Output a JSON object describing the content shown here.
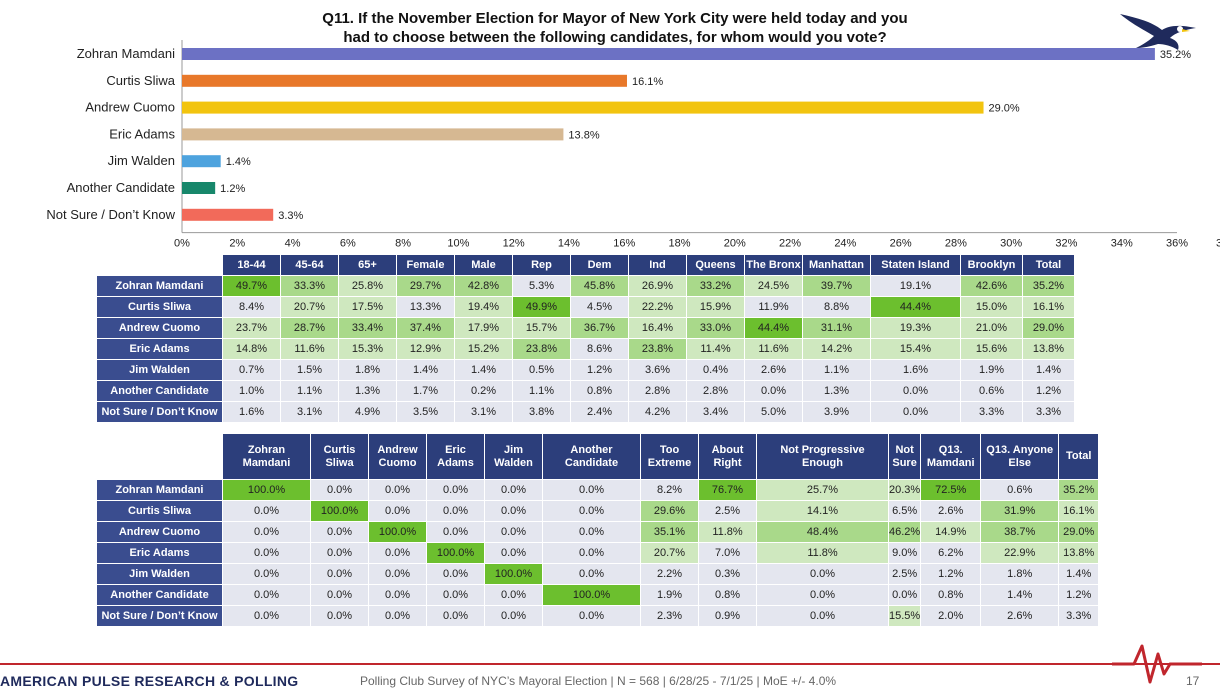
{
  "title_line1": "Q11. If the November Election for Mayor of New York City were held today and you",
  "title_line2": "had to choose between the following candidates, for whom would you vote?",
  "colors": {
    "header_bg": "#2c3e7b",
    "row_label_bg": "#3a4d8f",
    "accent_red": "#c0262d",
    "highlight_strong": "#6cbf2e",
    "highlight_light": "#a9d98a",
    "highlight_pale": "#cfe8bf",
    "cell_plain": "#e4e6ef"
  },
  "chart_data": {
    "type": "bar",
    "orientation": "horizontal",
    "categories": [
      "Zohran Mamdani",
      "Curtis Sliwa",
      "Andrew Cuomo",
      "Eric Adams",
      "Jim Walden",
      "Another Candidate",
      "Not Sure / Don’t Know"
    ],
    "values": [
      35.2,
      16.1,
      29.0,
      13.8,
      1.4,
      1.2,
      3.3
    ],
    "value_labels": [
      "35.2%",
      "16.1%",
      "29.0%",
      "13.8%",
      "1.4%",
      "1.2%",
      "3.3%"
    ],
    "bar_colors": [
      "#6c71c4",
      "#e8782a",
      "#f2c40f",
      "#d6b892",
      "#4ea3de",
      "#17876b",
      "#f26a5a"
    ],
    "xlim": [
      0,
      36
    ],
    "x_ticks": [
      "0%",
      "2%",
      "4%",
      "6%",
      "8%",
      "10%",
      "12%",
      "14%",
      "16%",
      "18%",
      "20%",
      "22%",
      "24%",
      "26%",
      "28%",
      "30%",
      "32%",
      "34%",
      "36%"
    ],
    "x_tick_overflow": "3",
    "grid": false,
    "legend": "none"
  },
  "table1": {
    "columns": [
      "18-44",
      "45-64",
      "65+",
      "Female",
      "Male",
      "Rep",
      "Dem",
      "Ind",
      "Queens",
      "The Bronx",
      "Manhattan",
      "Staten Island",
      "Brooklyn",
      "Total"
    ],
    "rows": [
      {
        "label": "Zohran Mamdani",
        "cells": [
          "49.7%",
          "33.3%",
          "25.8%",
          "29.7%",
          "42.8%",
          "5.3%",
          "45.8%",
          "26.9%",
          "33.2%",
          "24.5%",
          "39.7%",
          "19.1%",
          "42.6%",
          "35.2%"
        ],
        "shade": [
          "s",
          "l",
          "p",
          "l",
          "l",
          "n",
          "l",
          "p",
          "l",
          "p",
          "l",
          "n",
          "l",
          "l"
        ]
      },
      {
        "label": "Curtis Sliwa",
        "cells": [
          "8.4%",
          "20.7%",
          "17.5%",
          "13.3%",
          "19.4%",
          "49.9%",
          "4.5%",
          "22.2%",
          "15.9%",
          "11.9%",
          "8.8%",
          "44.4%",
          "15.0%",
          "16.1%"
        ],
        "shade": [
          "n",
          "p",
          "p",
          "n",
          "p",
          "s",
          "n",
          "p",
          "p",
          "n",
          "n",
          "s",
          "p",
          "p"
        ]
      },
      {
        "label": "Andrew Cuomo",
        "cells": [
          "23.7%",
          "28.7%",
          "33.4%",
          "37.4%",
          "17.9%",
          "15.7%",
          "36.7%",
          "16.4%",
          "33.0%",
          "44.4%",
          "31.1%",
          "19.3%",
          "21.0%",
          "29.0%"
        ],
        "shade": [
          "p",
          "l",
          "l",
          "l",
          "p",
          "p",
          "l",
          "p",
          "l",
          "s",
          "l",
          "p",
          "p",
          "l"
        ]
      },
      {
        "label": "Eric Adams",
        "cells": [
          "14.8%",
          "11.6%",
          "15.3%",
          "12.9%",
          "15.2%",
          "23.8%",
          "8.6%",
          "23.8%",
          "11.4%",
          "11.6%",
          "14.2%",
          "15.4%",
          "15.6%",
          "13.8%"
        ],
        "shade": [
          "p",
          "p",
          "p",
          "p",
          "p",
          "l",
          "n",
          "l",
          "p",
          "p",
          "p",
          "p",
          "p",
          "p"
        ]
      },
      {
        "label": "Jim Walden",
        "cells": [
          "0.7%",
          "1.5%",
          "1.8%",
          "1.4%",
          "1.4%",
          "0.5%",
          "1.2%",
          "3.6%",
          "0.4%",
          "2.6%",
          "1.1%",
          "1.6%",
          "1.9%",
          "1.4%"
        ],
        "shade": [
          "n",
          "n",
          "n",
          "n",
          "n",
          "n",
          "n",
          "n",
          "n",
          "n",
          "n",
          "n",
          "n",
          "n"
        ]
      },
      {
        "label": "Another Candidate",
        "cells": [
          "1.0%",
          "1.1%",
          "1.3%",
          "1.7%",
          "0.2%",
          "1.1%",
          "0.8%",
          "2.8%",
          "2.8%",
          "0.0%",
          "1.3%",
          "0.0%",
          "0.6%",
          "1.2%"
        ],
        "shade": [
          "n",
          "n",
          "n",
          "n",
          "n",
          "n",
          "n",
          "n",
          "n",
          "n",
          "n",
          "n",
          "n",
          "n"
        ]
      },
      {
        "label": "Not Sure / Don’t Know",
        "cells": [
          "1.6%",
          "3.1%",
          "4.9%",
          "3.5%",
          "3.1%",
          "3.8%",
          "2.4%",
          "4.2%",
          "3.4%",
          "5.0%",
          "3.9%",
          "0.0%",
          "3.3%",
          "3.3%"
        ],
        "shade": [
          "n",
          "n",
          "n",
          "n",
          "n",
          "n",
          "n",
          "n",
          "n",
          "n",
          "n",
          "n",
          "n",
          "n"
        ]
      }
    ]
  },
  "table2": {
    "columns": [
      [
        "Zohran",
        "Mamdani"
      ],
      [
        "Curtis",
        "Sliwa"
      ],
      [
        "Andrew",
        "Cuomo"
      ],
      [
        "Eric",
        "Adams"
      ],
      [
        "Jim",
        "Walden"
      ],
      [
        "Another",
        "Candidate"
      ],
      [
        "Too",
        "Extreme"
      ],
      [
        "About",
        "Right"
      ],
      [
        "Not Progressive",
        "Enough"
      ],
      [
        "Not",
        "Sure"
      ],
      [
        "Q13.",
        "Mamdani"
      ],
      [
        "Q13. Anyone",
        "Else"
      ],
      [
        "Total",
        ""
      ]
    ],
    "rows": [
      {
        "label": "Zohran Mamdani",
        "cells": [
          "100.0%",
          "0.0%",
          "0.0%",
          "0.0%",
          "0.0%",
          "0.0%",
          "8.2%",
          "76.7%",
          "25.7%",
          "20.3%",
          "72.5%",
          "0.6%",
          "35.2%"
        ],
        "shade": [
          "s",
          "n",
          "n",
          "n",
          "n",
          "n",
          "n",
          "s",
          "p",
          "p",
          "s",
          "n",
          "l"
        ]
      },
      {
        "label": "Curtis Sliwa",
        "cells": [
          "0.0%",
          "100.0%",
          "0.0%",
          "0.0%",
          "0.0%",
          "0.0%",
          "29.6%",
          "2.5%",
          "14.1%",
          "6.5%",
          "2.6%",
          "31.9%",
          "16.1%"
        ],
        "shade": [
          "n",
          "s",
          "n",
          "n",
          "n",
          "n",
          "l",
          "n",
          "p",
          "n",
          "n",
          "l",
          "p"
        ]
      },
      {
        "label": "Andrew Cuomo",
        "cells": [
          "0.0%",
          "0.0%",
          "100.0%",
          "0.0%",
          "0.0%",
          "0.0%",
          "35.1%",
          "11.8%",
          "48.4%",
          "46.2%",
          "14.9%",
          "38.7%",
          "29.0%"
        ],
        "shade": [
          "n",
          "n",
          "s",
          "n",
          "n",
          "n",
          "l",
          "p",
          "l",
          "l",
          "p",
          "l",
          "l"
        ]
      },
      {
        "label": "Eric Adams",
        "cells": [
          "0.0%",
          "0.0%",
          "0.0%",
          "100.0%",
          "0.0%",
          "0.0%",
          "20.7%",
          "7.0%",
          "11.8%",
          "9.0%",
          "6.2%",
          "22.9%",
          "13.8%"
        ],
        "shade": [
          "n",
          "n",
          "n",
          "s",
          "n",
          "n",
          "p",
          "n",
          "p",
          "n",
          "n",
          "p",
          "p"
        ]
      },
      {
        "label": "Jim Walden",
        "cells": [
          "0.0%",
          "0.0%",
          "0.0%",
          "0.0%",
          "100.0%",
          "0.0%",
          "2.2%",
          "0.3%",
          "0.0%",
          "2.5%",
          "1.2%",
          "1.8%",
          "1.4%"
        ],
        "shade": [
          "n",
          "n",
          "n",
          "n",
          "s",
          "n",
          "n",
          "n",
          "n",
          "n",
          "n",
          "n",
          "n"
        ]
      },
      {
        "label": "Another Candidate",
        "cells": [
          "0.0%",
          "0.0%",
          "0.0%",
          "0.0%",
          "0.0%",
          "100.0%",
          "1.9%",
          "0.8%",
          "0.0%",
          "0.0%",
          "0.8%",
          "1.4%",
          "1.2%"
        ],
        "shade": [
          "n",
          "n",
          "n",
          "n",
          "n",
          "s",
          "n",
          "n",
          "n",
          "n",
          "n",
          "n",
          "n"
        ]
      },
      {
        "label": "Not Sure / Don’t Know",
        "cells": [
          "0.0%",
          "0.0%",
          "0.0%",
          "0.0%",
          "0.0%",
          "0.0%",
          "2.3%",
          "0.9%",
          "0.0%",
          "15.5%",
          "2.0%",
          "2.6%",
          "3.3%"
        ],
        "shade": [
          "n",
          "n",
          "n",
          "n",
          "n",
          "n",
          "n",
          "n",
          "n",
          "p",
          "n",
          "n",
          "n"
        ]
      }
    ]
  },
  "footer": {
    "brand": "AMERICAN PULSE RESEARCH & POLLING",
    "note": "Polling Club Survey of NYC’s Mayoral Election | N = 568 | 6/28/25 - 7/1/25 | MoE +/- 4.0%",
    "page": "17"
  },
  "icons": {
    "logo": "eagle-logo-icon",
    "pulse": "heartbeat-pulse-icon"
  }
}
